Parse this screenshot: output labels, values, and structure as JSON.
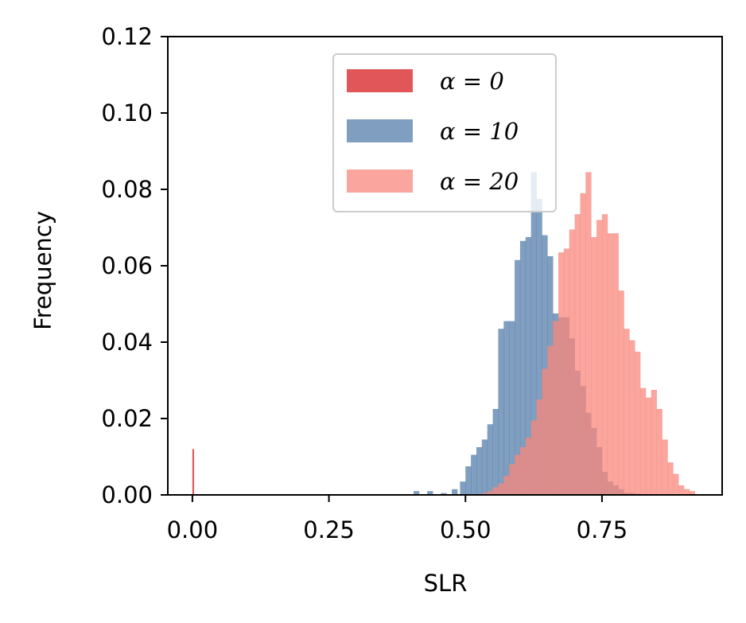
{
  "chart_data": {
    "type": "histogram",
    "xlabel": "SLR",
    "ylabel": "Frequency",
    "xlim": [
      -0.045,
      0.97
    ],
    "ylim": [
      0,
      0.12
    ],
    "xticks": [
      "0.00",
      "0.25",
      "0.50",
      "0.75"
    ],
    "yticks": [
      "0.00",
      "0.02",
      "0.04",
      "0.06",
      "0.08",
      "0.10",
      "0.12"
    ],
    "legend_placement": "upper center",
    "series": [
      {
        "name": "α = 0",
        "color": "#e15759",
        "opacity": 1.0,
        "x": [
          0.0
        ],
        "width": 0.0025,
        "values": [
          0.012
        ]
      },
      {
        "name": "α = 10",
        "color": "#4e79a7",
        "opacity": 0.72,
        "x": [
          0.405,
          0.43,
          0.455,
          0.475,
          0.49,
          0.5,
          0.51,
          0.52,
          0.53,
          0.54,
          0.55,
          0.56,
          0.57,
          0.58,
          0.59,
          0.6,
          0.61,
          0.62,
          0.63,
          0.64,
          0.65,
          0.66,
          0.67,
          0.68,
          0.69,
          0.7,
          0.71,
          0.72,
          0.73,
          0.74,
          0.75,
          0.76,
          0.77,
          0.78,
          0.79,
          0.8,
          0.81,
          0.82
        ],
        "width": 0.01,
        "values": [
          0.001,
          0.001,
          0.0005,
          0.0015,
          0.0035,
          0.0075,
          0.0105,
          0.0125,
          0.0145,
          0.0185,
          0.0225,
          0.0435,
          0.0455,
          0.0455,
          0.0615,
          0.0665,
          0.0675,
          0.0845,
          0.0775,
          0.068,
          0.0625,
          0.0475,
          0.0465,
          0.0465,
          0.041,
          0.0325,
          0.0285,
          0.0215,
          0.0175,
          0.0125,
          0.006,
          0.0035,
          0.0025,
          0.0015,
          0.0005,
          0.0005,
          0.0003,
          0.0002
        ]
      },
      {
        "name": "α = 20",
        "color": "#f8877c",
        "opacity": 0.75,
        "x": [
          0.53,
          0.54,
          0.55,
          0.56,
          0.57,
          0.58,
          0.59,
          0.6,
          0.61,
          0.62,
          0.63,
          0.64,
          0.65,
          0.66,
          0.67,
          0.68,
          0.69,
          0.7,
          0.71,
          0.72,
          0.73,
          0.74,
          0.75,
          0.76,
          0.77,
          0.78,
          0.79,
          0.8,
          0.81,
          0.82,
          0.83,
          0.84,
          0.85,
          0.86,
          0.87,
          0.88,
          0.89,
          0.9,
          0.91
        ],
        "width": 0.01,
        "values": [
          0.0005,
          0.001,
          0.002,
          0.003,
          0.005,
          0.008,
          0.0105,
          0.0125,
          0.015,
          0.0195,
          0.025,
          0.033,
          0.039,
          0.0455,
          0.0635,
          0.0645,
          0.0695,
          0.0735,
          0.079,
          0.0845,
          0.0675,
          0.072,
          0.0735,
          0.0685,
          0.0685,
          0.0535,
          0.0435,
          0.0405,
          0.0375,
          0.028,
          0.0255,
          0.0275,
          0.0225,
          0.0145,
          0.0085,
          0.0055,
          0.0025,
          0.0015,
          0.001
        ]
      }
    ]
  }
}
